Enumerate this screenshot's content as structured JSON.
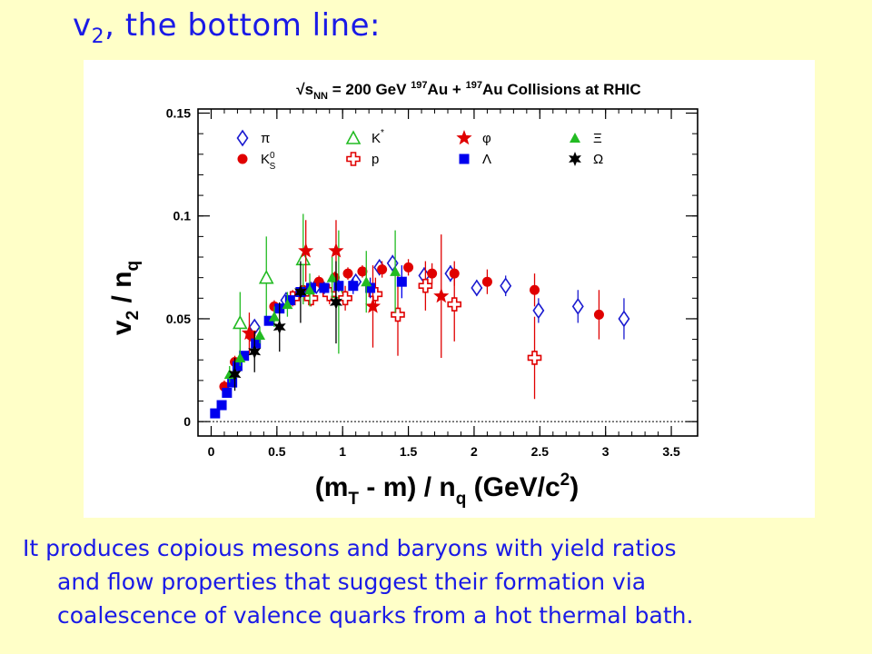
{
  "slide": {
    "title_main": "v",
    "title_sub": "2",
    "title_rest": ", the bottom line:",
    "caption_lines": [
      "It produces copious mesons and baryons with yield ratios",
      "and flow properties that suggest their formation via",
      "coalescence of valence quarks from a hot thermal bath."
    ]
  },
  "colors": {
    "background": "#ffffc8",
    "text_blue": "#1a1ae6",
    "pi": "#1a1ad0",
    "ks0": "#e00000",
    "kstar": "#22bb22",
    "proton": "#e00000",
    "phi": "#e00000",
    "lambda": "#0000ee",
    "xi": "#22bb22",
    "omega": "#000000"
  },
  "chart_data": {
    "type": "scatter",
    "title": "√s_NN = 200 GeV ¹⁹⁷Au + ¹⁹⁷Au Collisions at RHIC",
    "title_parts": {
      "sqrt": "√s",
      "sqrt_sub": "NN",
      "energy": " = 200 GeV ",
      "sup1": "197",
      "au1": "Au + ",
      "sup2": "197",
      "au2": "Au Collisions at RHIC"
    },
    "xlabel": "(m_T - m) / n_q (GeV/c²)",
    "xlabel_parts": {
      "a": "(m",
      "a_sub": "T",
      "b": " - m) / n",
      "b_sub": "q",
      "c": " (GeV/c",
      "c_sup": "2",
      "d": ")"
    },
    "ylabel": "v_2 / n_q",
    "ylabel_parts": {
      "a": "v",
      "a_sub": "2",
      "b": " / n",
      "b_sub": "q"
    },
    "xlim": [
      -0.1,
      3.7
    ],
    "ylim": [
      -0.007,
      0.152
    ],
    "xticks": [
      0,
      0.5,
      1,
      1.5,
      2,
      2.5,
      3,
      3.5
    ],
    "xtick_labels": [
      "0",
      "0.5",
      "1",
      "1.5",
      "2",
      "2.5",
      "3",
      "3.5"
    ],
    "yticks": [
      0,
      0.05,
      0.1,
      0.15
    ],
    "ytick_labels": [
      "0",
      "0.05",
      "0.1",
      "0.15"
    ],
    "reference_line_y": 0,
    "grid": false,
    "legend_placement": "top-left",
    "legend": [
      {
        "key": "pi",
        "label": "π"
      },
      {
        "key": "kstar",
        "label": "K*"
      },
      {
        "key": "phi",
        "label": "φ"
      },
      {
        "key": "xi",
        "label": "Ξ"
      },
      {
        "key": "ks0",
        "label": "K⁰S"
      },
      {
        "key": "proton",
        "label": "p"
      },
      {
        "key": "lambda",
        "label": "Λ"
      },
      {
        "key": "omega",
        "label": "Ω"
      }
    ],
    "series": [
      {
        "key": "pi",
        "name": "π",
        "marker": "diamond-open",
        "points": [
          [
            0.33,
            0.046,
            0.002
          ],
          [
            0.57,
            0.059,
            0.002
          ],
          [
            0.8,
            0.066,
            0.002
          ],
          [
            1.1,
            0.068,
            0.002
          ],
          [
            1.28,
            0.075,
            0.003
          ],
          [
            1.38,
            0.077,
            0.004
          ],
          [
            1.62,
            0.071,
            0.004
          ],
          [
            1.82,
            0.072,
            0.004
          ],
          [
            2.02,
            0.065,
            0.004
          ],
          [
            2.24,
            0.066,
            0.005
          ],
          [
            2.49,
            0.054,
            0.006
          ],
          [
            2.79,
            0.056,
            0.008
          ],
          [
            3.14,
            0.05,
            0.01
          ]
        ]
      },
      {
        "key": "ks0",
        "name": "K⁰S",
        "marker": "circle",
        "points": [
          [
            0.1,
            0.017,
            0.003
          ],
          [
            0.18,
            0.029,
            0.003
          ],
          [
            0.3,
            0.042,
            0.003
          ],
          [
            0.48,
            0.056,
            0.003
          ],
          [
            0.7,
            0.064,
            0.003
          ],
          [
            0.82,
            0.068,
            0.003
          ],
          [
            0.94,
            0.07,
            0.003
          ],
          [
            1.04,
            0.072,
            0.003
          ],
          [
            1.15,
            0.073,
            0.003
          ],
          [
            1.3,
            0.074,
            0.004
          ],
          [
            1.5,
            0.075,
            0.004
          ],
          [
            1.68,
            0.072,
            0.005
          ],
          [
            1.85,
            0.072,
            0.006
          ],
          [
            2.1,
            0.068,
            0.006
          ],
          [
            2.46,
            0.064,
            0.008
          ],
          [
            2.95,
            0.052,
            0.012
          ]
        ]
      },
      {
        "key": "kstar",
        "name": "K*",
        "marker": "triangle-open",
        "points": [
          [
            0.22,
            0.048,
            0.015
          ],
          [
            0.42,
            0.07,
            0.02
          ],
          [
            0.7,
            0.079,
            0.022
          ],
          [
            0.97,
            0.063,
            0.03
          ]
        ]
      },
      {
        "key": "proton",
        "name": "p",
        "marker": "cross-open",
        "points": [
          [
            0.62,
            0.06,
            0.004
          ],
          [
            0.76,
            0.06,
            0.004
          ],
          [
            0.9,
            0.062,
            0.005
          ],
          [
            1.02,
            0.06,
            0.006
          ],
          [
            1.25,
            0.062,
            0.008
          ],
          [
            1.42,
            0.052,
            0.02
          ],
          [
            1.63,
            0.066,
            0.012
          ],
          [
            1.85,
            0.057,
            0.018
          ],
          [
            2.46,
            0.031,
            0.02
          ]
        ]
      },
      {
        "key": "phi",
        "name": "φ",
        "marker": "star",
        "points": [
          [
            0.29,
            0.043,
            0.01
          ],
          [
            0.72,
            0.083,
            0.015
          ],
          [
            0.95,
            0.083,
            0.015
          ],
          [
            1.23,
            0.056,
            0.02
          ],
          [
            1.75,
            0.061,
            0.03
          ]
        ]
      },
      {
        "key": "lambda",
        "name": "Λ",
        "marker": "square",
        "points": [
          [
            0.03,
            0.004,
            0.002
          ],
          [
            0.08,
            0.008,
            0.002
          ],
          [
            0.12,
            0.014,
            0.002
          ],
          [
            0.16,
            0.019,
            0.002
          ],
          [
            0.2,
            0.027,
            0.002
          ],
          [
            0.25,
            0.032,
            0.002
          ],
          [
            0.34,
            0.038,
            0.002
          ],
          [
            0.44,
            0.049,
            0.002
          ],
          [
            0.52,
            0.055,
            0.002
          ],
          [
            0.6,
            0.059,
            0.002
          ],
          [
            0.68,
            0.063,
            0.002
          ],
          [
            0.76,
            0.065,
            0.003
          ],
          [
            0.86,
            0.065,
            0.003
          ],
          [
            0.97,
            0.066,
            0.003
          ],
          [
            1.08,
            0.066,
            0.004
          ],
          [
            1.21,
            0.065,
            0.005
          ],
          [
            1.45,
            0.068,
            0.008
          ]
        ]
      },
      {
        "key": "xi",
        "name": "Ξ",
        "marker": "triangle",
        "points": [
          [
            0.14,
            0.023,
            0.004
          ],
          [
            0.22,
            0.031,
            0.004
          ],
          [
            0.37,
            0.042,
            0.004
          ],
          [
            0.48,
            0.051,
            0.005
          ],
          [
            0.58,
            0.057,
            0.006
          ],
          [
            0.75,
            0.064,
            0.008
          ],
          [
            0.92,
            0.07,
            0.01
          ],
          [
            1.18,
            0.068,
            0.015
          ],
          [
            1.4,
            0.073,
            0.02
          ]
        ]
      },
      {
        "key": "omega",
        "name": "Ω",
        "marker": "star6",
        "points": [
          [
            0.18,
            0.023,
            0.008
          ],
          [
            0.33,
            0.034,
            0.01
          ],
          [
            0.52,
            0.046,
            0.012
          ],
          [
            0.68,
            0.063,
            0.015
          ],
          [
            0.95,
            0.058,
            0.02
          ]
        ]
      }
    ]
  }
}
